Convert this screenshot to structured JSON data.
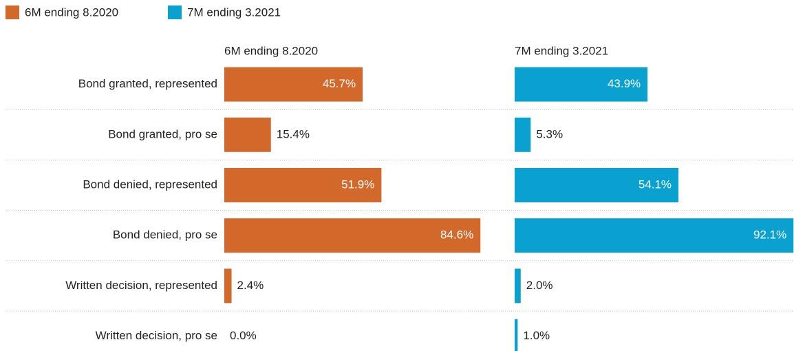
{
  "chart_data": {
    "type": "bar",
    "categories": [
      "Bond granted, represented",
      "Bond granted, pro se",
      "Bond denied, represented",
      "Bond denied, pro se",
      "Written decision, represented",
      "Written decision, pro se"
    ],
    "series": [
      {
        "name": "6M ending 8.2020",
        "color": "#d2692a",
        "values": [
          45.7,
          15.4,
          51.9,
          84.6,
          2.4,
          0
        ],
        "value_labels": [
          "45.7%",
          "15.4%",
          "51.9%",
          "84.6%",
          "2.4%",
          "0.0%"
        ]
      },
      {
        "name": "7M ending 3.2021",
        "color": "#0aa0cf",
        "values": [
          43.9,
          5.3,
          54.1,
          92.1,
          2,
          1
        ],
        "value_labels": [
          "43.9%",
          "5.3%",
          "54.1%",
          "92.1%",
          "2.0%",
          "1.0%"
        ]
      }
    ],
    "legend": "top-left"
  }
}
